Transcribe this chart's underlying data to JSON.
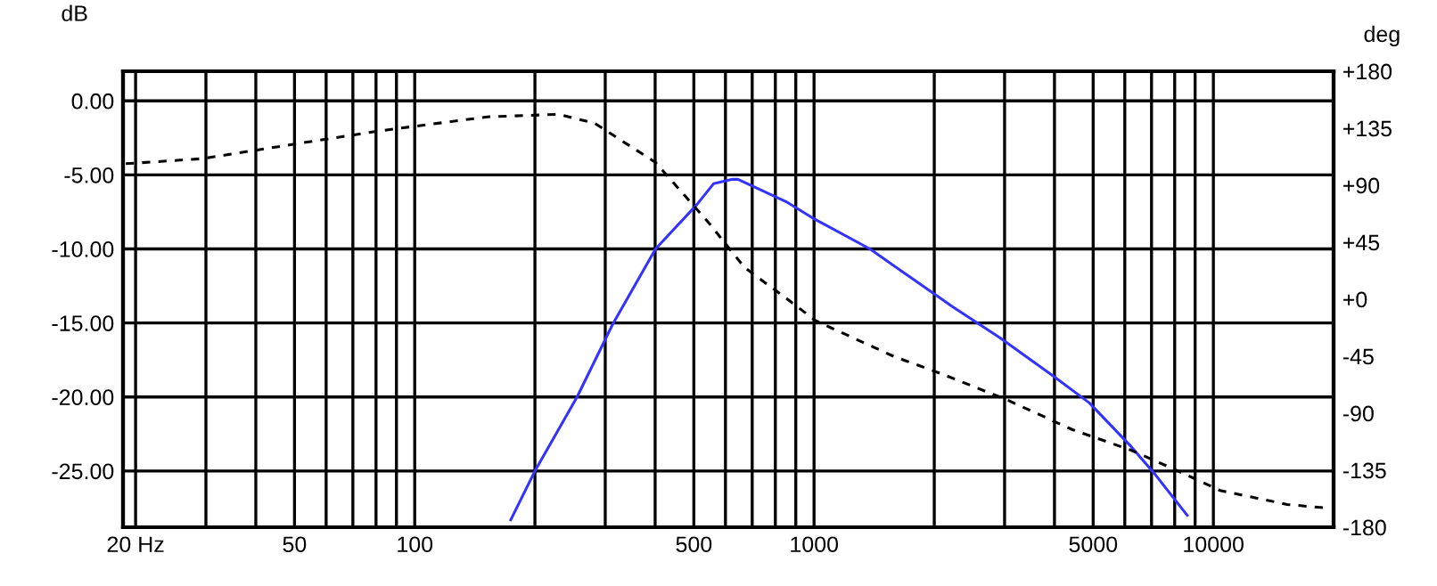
{
  "chart_data": {
    "type": "line",
    "ylabel": "dB",
    "y2label": "deg",
    "log": "x",
    "grid": true,
    "xlim": [
      18.6,
      20000
    ],
    "xticks": [
      {
        "value": 20,
        "label": "20 Hz"
      },
      {
        "value": 30,
        "label": null
      },
      {
        "value": 40,
        "label": null
      },
      50,
      {
        "value": 60,
        "label": null
      },
      {
        "value": 70,
        "label": null
      },
      {
        "value": 80,
        "label": null
      },
      {
        "value": 90,
        "label": null
      },
      100,
      {
        "value": 200,
        "label": null
      },
      {
        "value": 300,
        "label": null
      },
      {
        "value": 400,
        "label": null
      },
      500,
      {
        "value": 600,
        "label": null
      },
      {
        "value": 700,
        "label": null
      },
      {
        "value": 800,
        "label": null
      },
      {
        "value": 900,
        "label": null
      },
      1000,
      {
        "value": 2000,
        "label": null
      },
      {
        "value": 3000,
        "label": null
      },
      {
        "value": 4000,
        "label": null
      },
      5000,
      {
        "value": 6000,
        "label": null
      },
      {
        "value": 7000,
        "label": null
      },
      {
        "value": 8000,
        "label": null
      },
      {
        "value": 9000,
        "label": null
      },
      10000
    ],
    "ylim": [
      -28.8,
      2
    ],
    "yticks": [
      {
        "value": 0,
        "label": "0.00"
      },
      {
        "value": -5,
        "label": "-5.00"
      },
      {
        "value": -10,
        "label": "-10.00"
      },
      {
        "value": -15,
        "label": "-15.00"
      },
      {
        "value": -20,
        "label": "-20.00"
      },
      {
        "value": -25,
        "label": "-25.00"
      }
    ],
    "y2lim": [
      -180,
      180
    ],
    "y2ticks": [
      {
        "value": 180,
        "label": "+180"
      },
      {
        "value": 135,
        "label": "+135"
      },
      {
        "value": 90,
        "label": "+90"
      },
      {
        "value": 45,
        "label": "+45"
      },
      {
        "value": 0,
        "label": "+0"
      },
      -45,
      -90,
      -135,
      -180
    ],
    "series": [
      {
        "color": "#3333ff",
        "line_style": "solid",
        "x": [
          174,
          200,
          255,
          313,
          401,
          509,
          560,
          625,
          645,
          850,
          990,
          1380,
          2220,
          2920,
          3980,
          4890,
          6200,
          7180,
          8600
        ],
        "values": [
          -28.3,
          -25,
          -20,
          -15.1,
          -10,
          -7,
          -5.6,
          -5.3,
          -5.3,
          -6.8,
          -7.9,
          -10,
          -13.9,
          -16,
          -18.6,
          -20.4,
          -23.3,
          -25.3,
          -28
        ]
      },
      {
        "color": "#000000",
        "line_style": "dashed",
        "axis": "y2",
        "x": [
          18.9,
          29.4,
          51.2,
          82,
          152,
          229,
          282,
          401,
          546,
          670,
          850,
          1010,
          1580,
          2090,
          3020,
          4440,
          6200,
          7950,
          10400,
          15300,
          19400
        ],
        "values": [
          107,
          111,
          123,
          133,
          144,
          146,
          139,
          108,
          60,
          25,
          1,
          -17,
          -45,
          -59,
          -79,
          -103,
          -119,
          -134,
          -151,
          -162,
          -165
        ]
      }
    ]
  }
}
